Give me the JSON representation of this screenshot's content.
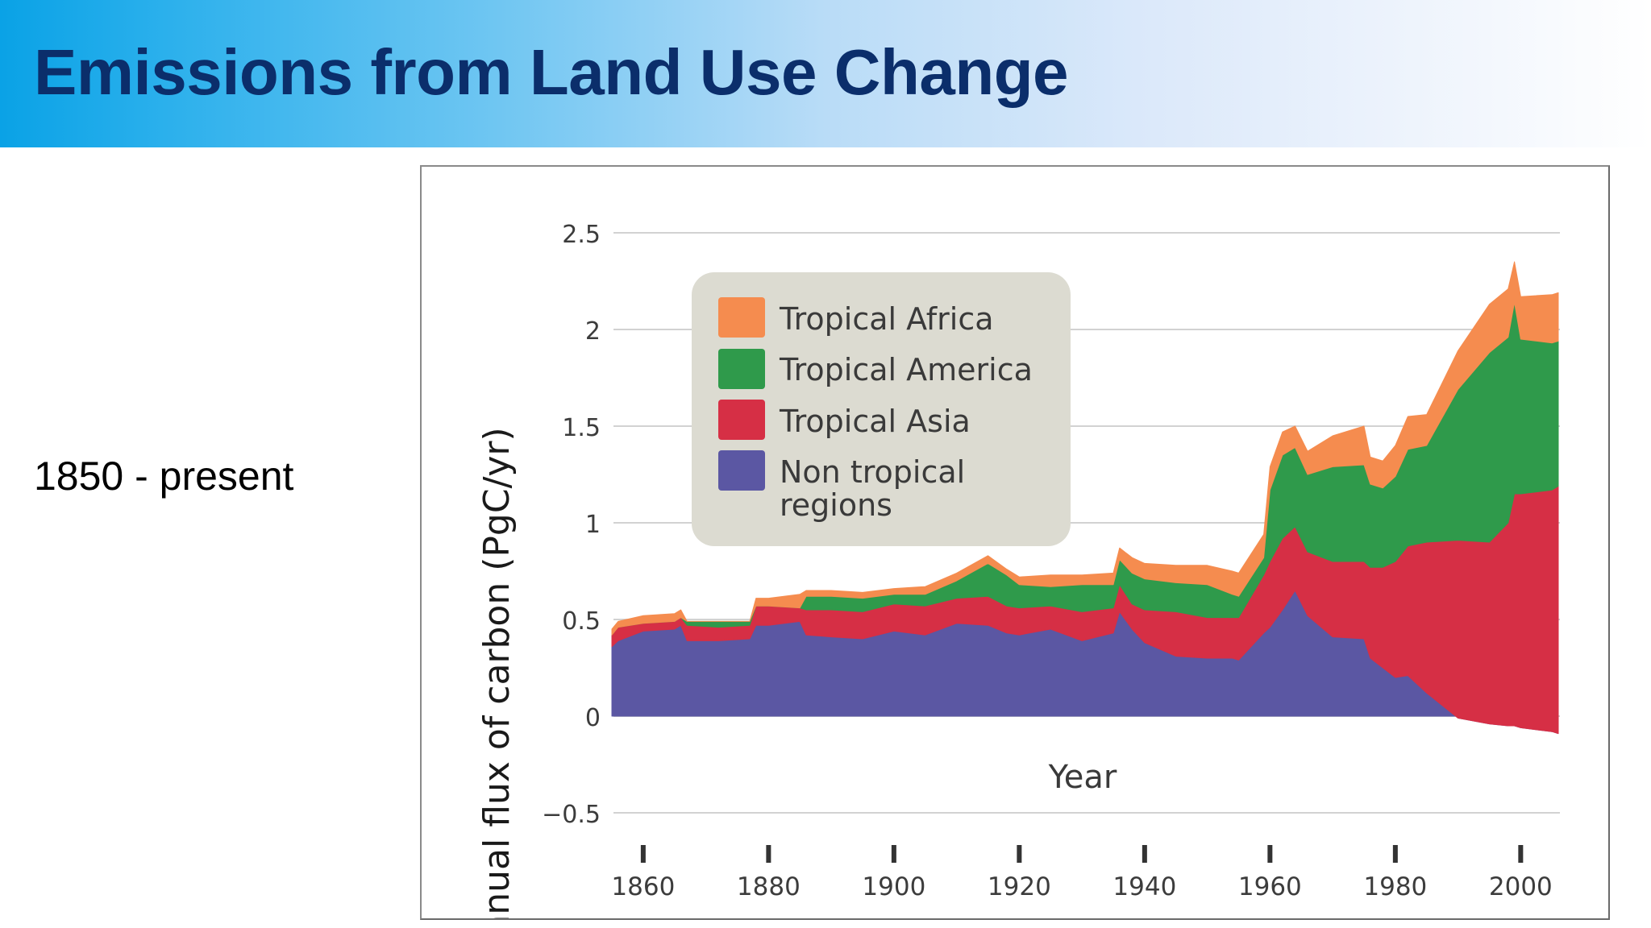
{
  "slide": {
    "title": "Emissions from Land Use Change",
    "subtitle": "1850 - present"
  },
  "chart_data": {
    "type": "area",
    "stacked": true,
    "title": "",
    "xlabel": "Year",
    "ylabel": "Annual flux of carbon (PgC/yr)",
    "xlim": [
      1855,
      2006
    ],
    "ylim": [
      -0.5,
      2.5
    ],
    "x_ticks": [
      1860,
      1880,
      1900,
      1920,
      1940,
      1960,
      1980,
      2000
    ],
    "y_ticks": [
      -0.5,
      0,
      0.5,
      1,
      1.5,
      2,
      2.5
    ],
    "y_tick_labels": [
      "−0.5",
      "0",
      "0.5",
      "1",
      "1.5",
      "2",
      "2.5"
    ],
    "grid": "horizontal",
    "legend_position": "top-left",
    "x": [
      1855,
      1856,
      1860,
      1865,
      1866,
      1867,
      1872,
      1877,
      1878,
      1880,
      1885,
      1886,
      1890,
      1895,
      1900,
      1905,
      1910,
      1915,
      1918,
      1920,
      1925,
      1930,
      1935,
      1936,
      1938,
      1940,
      1945,
      1950,
      1954,
      1955,
      1959,
      1960,
      1962,
      1964,
      1966,
      1970,
      1975,
      1976,
      1978,
      1980,
      1982,
      1985,
      1990,
      1995,
      1998,
      1999,
      2000,
      2005,
      2006
    ],
    "series": [
      {
        "name": "Non tropical regions",
        "color": "#5b57a3",
        "values": [
          0.36,
          0.39,
          0.44,
          0.45,
          0.47,
          0.39,
          0.39,
          0.4,
          0.47,
          0.47,
          0.49,
          0.42,
          0.41,
          0.4,
          0.44,
          0.42,
          0.48,
          0.47,
          0.43,
          0.42,
          0.45,
          0.39,
          0.43,
          0.54,
          0.45,
          0.38,
          0.31,
          0.3,
          0.3,
          0.29,
          0.43,
          0.46,
          0.55,
          0.65,
          0.52,
          0.41,
          0.4,
          0.3,
          0.25,
          0.2,
          0.21,
          0.12,
          -0.01,
          -0.04,
          -0.05,
          -0.05,
          -0.06,
          -0.08,
          -0.09
        ]
      },
      {
        "name": "Tropical Asia",
        "color": "#d62f45",
        "values": [
          0.06,
          0.07,
          0.04,
          0.04,
          0.04,
          0.08,
          0.07,
          0.07,
          0.1,
          0.1,
          0.07,
          0.13,
          0.14,
          0.14,
          0.14,
          0.15,
          0.13,
          0.15,
          0.14,
          0.14,
          0.12,
          0.15,
          0.13,
          0.14,
          0.13,
          0.17,
          0.23,
          0.21,
          0.21,
          0.22,
          0.3,
          0.34,
          0.37,
          0.33,
          0.33,
          0.39,
          0.4,
          0.47,
          0.52,
          0.6,
          0.67,
          0.78,
          0.92,
          0.94,
          1.05,
          1.2,
          1.21,
          1.25,
          1.28
        ]
      },
      {
        "name": "Tropical America",
        "color": "#2f9a4b",
        "values": [
          0.0,
          0.0,
          0.0,
          0.0,
          0.0,
          0.02,
          0.03,
          0.02,
          0.0,
          0.0,
          0.0,
          0.07,
          0.07,
          0.07,
          0.05,
          0.06,
          0.09,
          0.17,
          0.16,
          0.12,
          0.1,
          0.14,
          0.12,
          0.13,
          0.16,
          0.16,
          0.15,
          0.17,
          0.12,
          0.11,
          0.09,
          0.37,
          0.43,
          0.41,
          0.4,
          0.49,
          0.5,
          0.43,
          0.41,
          0.44,
          0.5,
          0.5,
          0.78,
          0.98,
          0.96,
          0.99,
          0.8,
          0.76,
          0.75
        ]
      },
      {
        "name": "Tropical Africa",
        "color": "#f58c4f",
        "values": [
          0.03,
          0.03,
          0.04,
          0.04,
          0.04,
          0.0,
          0.0,
          0.0,
          0.04,
          0.04,
          0.07,
          0.03,
          0.03,
          0.03,
          0.03,
          0.04,
          0.04,
          0.04,
          0.03,
          0.04,
          0.06,
          0.05,
          0.06,
          0.06,
          0.08,
          0.08,
          0.09,
          0.1,
          0.12,
          0.12,
          0.12,
          0.12,
          0.12,
          0.11,
          0.12,
          0.16,
          0.2,
          0.14,
          0.14,
          0.16,
          0.17,
          0.16,
          0.2,
          0.25,
          0.25,
          0.21,
          0.22,
          0.25,
          0.25
        ]
      }
    ],
    "legend": [
      {
        "label": "Tropical Africa",
        "color": "#f58c4f"
      },
      {
        "label": "Tropical America",
        "color": "#2f9a4b"
      },
      {
        "label": "Tropical Asia",
        "color": "#d62f45"
      },
      {
        "label": "Non tropical regions",
        "color": "#5b57a3"
      }
    ]
  }
}
